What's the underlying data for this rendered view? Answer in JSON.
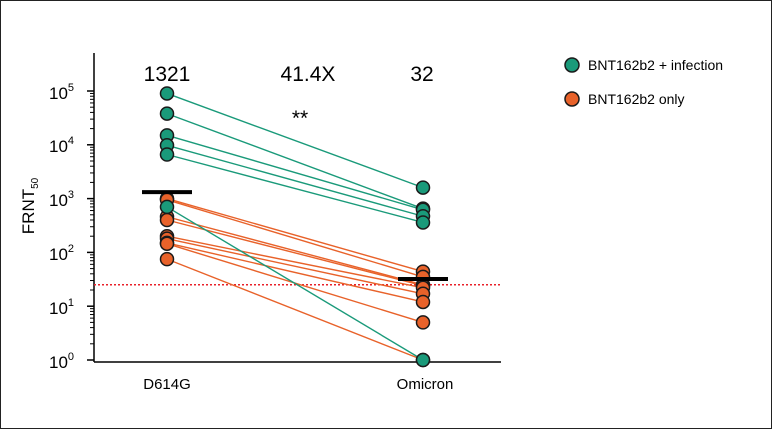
{
  "chart_data": {
    "type": "scatter",
    "subtype": "paired before-after plot, log10 y axis",
    "categories": [
      "D614G",
      "Omicron"
    ],
    "ylabel": "FRNT",
    "ylabel_subscript": "50",
    "yscale": "log10",
    "ylim": [
      1,
      200000
    ],
    "yticks": [
      {
        "value": 1,
        "base": "10",
        "exp": "0"
      },
      {
        "value": 10,
        "base": "10",
        "exp": "1"
      },
      {
        "value": 100,
        "base": "10",
        "exp": "2"
      },
      {
        "value": 1000,
        "base": "10",
        "exp": "3"
      },
      {
        "value": 10000,
        "base": "10",
        "exp": "4"
      },
      {
        "value": 100000,
        "base": "10",
        "exp": "5"
      }
    ],
    "gmt_labels": [
      {
        "category": "D614G",
        "text": "1321",
        "color": "#000000"
      },
      {
        "category": "center",
        "text": "41.4X",
        "color": "#e8202a"
      },
      {
        "category": "Omicron",
        "text": "32",
        "color": "#000000"
      }
    ],
    "significance": "**",
    "geometric_means": [
      1321,
      32
    ],
    "threshold": {
      "value": 25,
      "color": "#e8202a",
      "style": "dotted"
    },
    "series": [
      {
        "name": "BNT162b2 + infection",
        "color": "#1a9a7a",
        "pairs": [
          [
            90000,
            1600
          ],
          [
            38000,
            650
          ],
          [
            15000,
            620
          ],
          [
            9800,
            470
          ],
          [
            6600,
            360
          ],
          [
            700,
            1
          ]
        ]
      },
      {
        "name": "BNT162b2 only",
        "color": "#e8622a",
        "pairs": [
          [
            1000,
            44
          ],
          [
            950,
            35
          ],
          [
            460,
            25
          ],
          [
            400,
            24
          ],
          [
            200,
            22
          ],
          [
            180,
            17
          ],
          [
            150,
            12
          ],
          [
            145,
            5
          ],
          [
            75,
            1
          ]
        ]
      }
    ],
    "legend": {
      "position": "top-right",
      "entries": [
        {
          "label": "BNT162b2 + infection",
          "color": "#1a9a7a"
        },
        {
          "label": "BNT162b2 only",
          "color": "#e8622a"
        }
      ]
    }
  }
}
